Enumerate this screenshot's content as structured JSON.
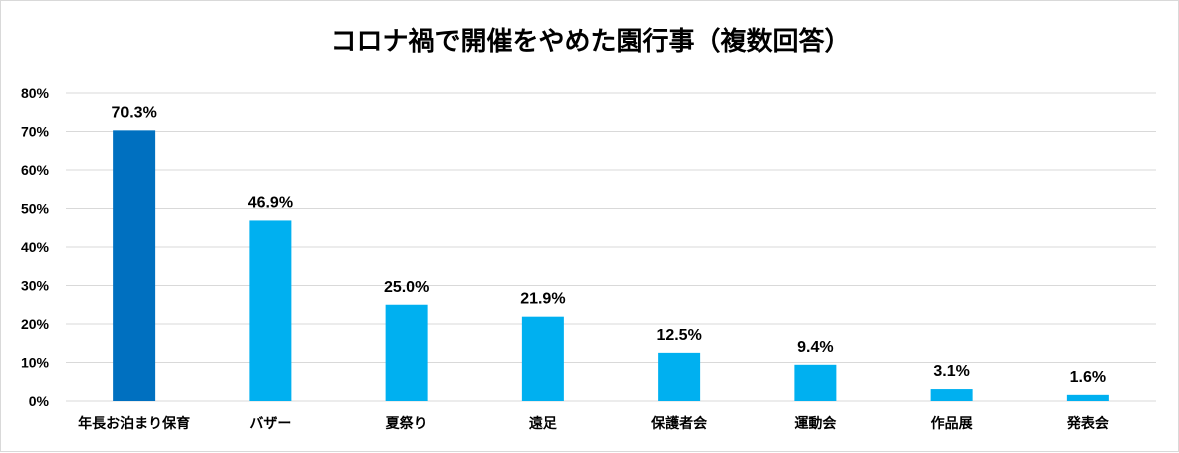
{
  "chart_data": {
    "type": "bar",
    "title": "コロナ禍で開催をやめた園行事（複数回答）",
    "categories": [
      "年長お泊まり保育",
      "バザー",
      "夏祭り",
      "遠足",
      "保護者会",
      "運動会",
      "作品展",
      "発表会"
    ],
    "values": [
      70.3,
      46.9,
      25.0,
      21.9,
      12.5,
      9.4,
      3.1,
      1.6
    ],
    "data_labels": [
      "70.3%",
      "46.9%",
      "25.0%",
      "21.9%",
      "12.5%",
      "9.4%",
      "3.1%",
      "1.6%"
    ],
    "y_ticks": [
      "0%",
      "10%",
      "20%",
      "30%",
      "40%",
      "50%",
      "60%",
      "70%",
      "80%"
    ],
    "ylim": [
      0,
      80
    ],
    "grid": true,
    "colors": {
      "highlight": "#0070C0",
      "default": "#00B0F0",
      "grid": "#d9d9d9"
    }
  }
}
